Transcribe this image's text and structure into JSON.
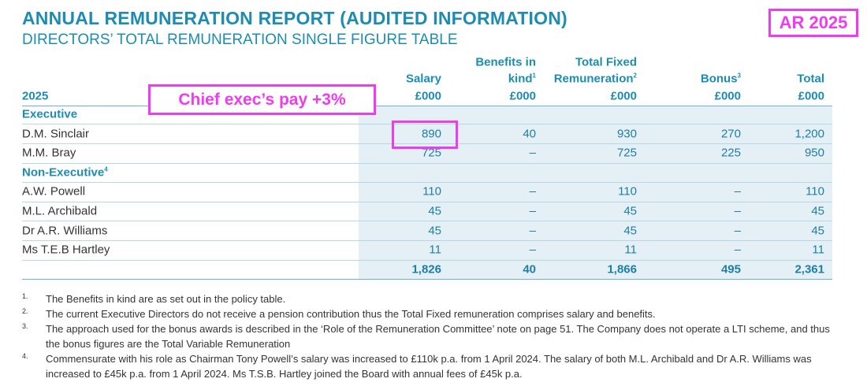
{
  "header": {
    "title": "ANNUAL REMUNERATION REPORT (AUDITED INFORMATION)",
    "subtitle": "DIRECTORS’ TOTAL REMUNERATION SINGLE FIGURE TABLE",
    "badge": "AR 2025"
  },
  "annotation": "Chief exec’s pay +3%",
  "table": {
    "year": "2025",
    "columns": [
      {
        "lines": [
          "Salary"
        ],
        "unit": "£000"
      },
      {
        "lines": [
          "Benefits in",
          "kind"
        ],
        "note": "1",
        "unit": "£000"
      },
      {
        "lines": [
          "Total Fixed",
          "Remuneration"
        ],
        "note": "2",
        "unit": "£000"
      },
      {
        "lines": [
          "Bonus"
        ],
        "note": "3",
        "unit": "£000"
      },
      {
        "lines": [
          "Total"
        ],
        "unit": "£000"
      }
    ],
    "rows": [
      {
        "section": "Executive"
      },
      {
        "name": "D.M. Sinclair",
        "cells": [
          "890",
          "40",
          "930",
          "270",
          "1,200"
        ]
      },
      {
        "name": "M.M. Bray",
        "cells": [
          "725",
          "–",
          "725",
          "225",
          "950"
        ]
      },
      {
        "section": "Non-Executive",
        "note": "4"
      },
      {
        "name": "A.W. Powell",
        "cells": [
          "110",
          "–",
          "110",
          "–",
          "110"
        ]
      },
      {
        "name": "M.L. Archibald",
        "cells": [
          "45",
          "–",
          "45",
          "–",
          "45"
        ]
      },
      {
        "name": "Dr A.R. Williams",
        "cells": [
          "45",
          "–",
          "45",
          "–",
          "45"
        ]
      },
      {
        "name": "Ms T.E.B Hartley",
        "cells": [
          "11",
          "–",
          "11",
          "–",
          "11"
        ]
      }
    ],
    "total": [
      "1,826",
      "40",
      "1,866",
      "495",
      "2,361"
    ]
  },
  "footnotes": [
    {
      "number": "1.",
      "text": "The Benefits in kind are as set out in the policy table."
    },
    {
      "number": "2.",
      "text": "The current Executive Directors do not receive a pension contribution thus the Total Fixed remuneration comprises salary and benefits."
    },
    {
      "number": "3.",
      "text": "The approach used for the bonus awards is described in the ‘Role of the Remuneration Committee’ note on page 51. The Company does not operate a LTI scheme, and thus the bonus figures are the Total Variable Remuneration"
    },
    {
      "number": "4.",
      "text": "Commensurate with his role as Chairman Tony Powell’s salary was increased to £110k p.a. from 1 April 2024. The salary of both M.L. Archibald and Dr A.R. Williams was increased to £45k p.a. from 1 April 2024. Ms T.S.B. Hartley joined the Board with annual fees of £45k p.a."
    }
  ]
}
